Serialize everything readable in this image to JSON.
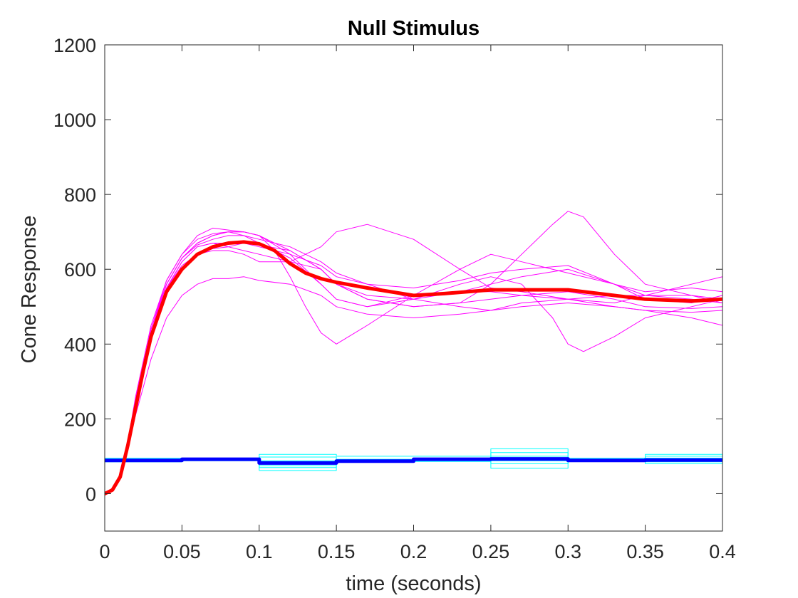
{
  "chart_data": {
    "type": "line",
    "title": "Null Stimulus",
    "xlabel": "time (seconds)",
    "ylabel": "Cone Response",
    "xlim": [
      0,
      0.4
    ],
    "ylim": [
      -100,
      1200
    ],
    "xticks": [
      0,
      0.05,
      0.1,
      0.15,
      0.2,
      0.25,
      0.3,
      0.35,
      0.4
    ],
    "xtick_labels": [
      "0",
      "0.05",
      "0.1",
      "0.15",
      "0.2",
      "0.25",
      "0.3",
      "0.35",
      "0.4"
    ],
    "yticks": [
      0,
      200,
      400,
      600,
      800,
      1000,
      1200
    ],
    "ytick_labels": [
      "0",
      "200",
      "400",
      "600",
      "800",
      "1000",
      "1200"
    ],
    "grid": false,
    "box": true,
    "colors": {
      "trial_response": "#ff00ff",
      "mean_response": "#ff0000",
      "trial_input": "#00ffff",
      "mean_input": "#0000ff"
    },
    "series": [
      {
        "role": "trial_response",
        "x": [
          0,
          0.005,
          0.01,
          0.015,
          0.02,
          0.03,
          0.04,
          0.05,
          0.06,
          0.07,
          0.08,
          0.09,
          0.1,
          0.12,
          0.14,
          0.15,
          0.17,
          0.2,
          0.23,
          0.25,
          0.27,
          0.3,
          0.33,
          0.35,
          0.38,
          0.4
        ],
        "y": [
          0,
          10,
          50,
          140,
          260,
          450,
          570,
          640,
          690,
          710,
          705,
          700,
          690,
          650,
          600,
          560,
          520,
          500,
          510,
          520,
          530,
          540,
          520,
          500,
          495,
          500
        ]
      },
      {
        "role": "trial_response",
        "x": [
          0,
          0.005,
          0.01,
          0.015,
          0.02,
          0.03,
          0.04,
          0.05,
          0.06,
          0.07,
          0.08,
          0.09,
          0.1,
          0.12,
          0.14,
          0.15,
          0.17,
          0.2,
          0.23,
          0.25,
          0.27,
          0.3,
          0.33,
          0.35,
          0.38,
          0.4
        ],
        "y": [
          0,
          10,
          50,
          140,
          250,
          430,
          550,
          620,
          660,
          670,
          660,
          650,
          640,
          620,
          600,
          560,
          530,
          520,
          540,
          560,
          580,
          600,
          560,
          530,
          520,
          510
        ]
      },
      {
        "role": "trial_response",
        "x": [
          0,
          0.005,
          0.01,
          0.015,
          0.02,
          0.03,
          0.04,
          0.05,
          0.06,
          0.07,
          0.08,
          0.09,
          0.1,
          0.12,
          0.14,
          0.15,
          0.17,
          0.2,
          0.23,
          0.25,
          0.27,
          0.3,
          0.33,
          0.35,
          0.38,
          0.4
        ],
        "y": [
          0,
          10,
          45,
          120,
          210,
          360,
          470,
          530,
          560,
          575,
          575,
          580,
          570,
          560,
          530,
          500,
          480,
          470,
          480,
          490,
          500,
          510,
          500,
          490,
          485,
          490
        ]
      },
      {
        "role": "trial_response",
        "x": [
          0,
          0.005,
          0.01,
          0.015,
          0.02,
          0.03,
          0.04,
          0.05,
          0.06,
          0.07,
          0.08,
          0.09,
          0.1,
          0.11,
          0.12,
          0.13,
          0.14,
          0.15,
          0.17,
          0.2,
          0.23,
          0.25,
          0.27,
          0.3,
          0.33,
          0.35,
          0.38,
          0.4
        ],
        "y": [
          0,
          10,
          50,
          140,
          250,
          440,
          560,
          630,
          670,
          690,
          700,
          700,
          690,
          650,
          580,
          500,
          430,
          400,
          450,
          530,
          540,
          540,
          530,
          520,
          500,
          490,
          470,
          450
        ]
      },
      {
        "role": "trial_response",
        "x": [
          0,
          0.005,
          0.01,
          0.015,
          0.02,
          0.03,
          0.04,
          0.05,
          0.06,
          0.07,
          0.08,
          0.09,
          0.1,
          0.12,
          0.14,
          0.15,
          0.17,
          0.2,
          0.23,
          0.25,
          0.27,
          0.29,
          0.3,
          0.31,
          0.33,
          0.35,
          0.38,
          0.4
        ],
        "y": [
          0,
          10,
          50,
          140,
          250,
          430,
          540,
          600,
          640,
          655,
          660,
          670,
          665,
          650,
          600,
          560,
          520,
          500,
          510,
          560,
          640,
          720,
          755,
          740,
          640,
          560,
          530,
          520
        ]
      },
      {
        "role": "trial_response",
        "x": [
          0,
          0.005,
          0.01,
          0.015,
          0.02,
          0.03,
          0.04,
          0.05,
          0.06,
          0.07,
          0.08,
          0.09,
          0.1,
          0.12,
          0.14,
          0.15,
          0.17,
          0.2,
          0.23,
          0.25,
          0.27,
          0.29,
          0.3,
          0.31,
          0.33,
          0.35,
          0.38,
          0.4
        ],
        "y": [
          0,
          10,
          50,
          140,
          250,
          440,
          560,
          630,
          670,
          690,
          700,
          700,
          690,
          640,
          560,
          520,
          500,
          520,
          560,
          580,
          560,
          470,
          400,
          380,
          420,
          470,
          500,
          520
        ]
      },
      {
        "role": "trial_response",
        "x": [
          0,
          0.005,
          0.01,
          0.015,
          0.02,
          0.03,
          0.04,
          0.05,
          0.06,
          0.07,
          0.08,
          0.09,
          0.1,
          0.12,
          0.14,
          0.15,
          0.17,
          0.2,
          0.23,
          0.25,
          0.27,
          0.3,
          0.33,
          0.35,
          0.38,
          0.4
        ],
        "y": [
          0,
          10,
          50,
          140,
          250,
          430,
          550,
          610,
          640,
          650,
          650,
          640,
          620,
          620,
          660,
          700,
          720,
          680,
          600,
          550,
          540,
          520,
          510,
          530,
          560,
          580
        ]
      },
      {
        "role": "trial_response",
        "x": [
          0,
          0.005,
          0.01,
          0.015,
          0.02,
          0.03,
          0.04,
          0.05,
          0.06,
          0.07,
          0.08,
          0.09,
          0.1,
          0.12,
          0.14,
          0.15,
          0.17,
          0.2,
          0.23,
          0.25,
          0.27,
          0.3,
          0.33,
          0.35,
          0.38,
          0.4
        ],
        "y": [
          0,
          10,
          50,
          140,
          250,
          440,
          570,
          640,
          680,
          695,
          700,
          690,
          670,
          630,
          560,
          520,
          500,
          530,
          600,
          640,
          620,
          590,
          560,
          540,
          550,
          540
        ]
      },
      {
        "role": "trial_response",
        "x": [
          0,
          0.005,
          0.01,
          0.015,
          0.02,
          0.03,
          0.04,
          0.05,
          0.06,
          0.07,
          0.08,
          0.09,
          0.1,
          0.12,
          0.14,
          0.15,
          0.17,
          0.2,
          0.23,
          0.25,
          0.27,
          0.3,
          0.33,
          0.35,
          0.38,
          0.4
        ],
        "y": [
          0,
          10,
          50,
          140,
          250,
          430,
          560,
          630,
          665,
          680,
          690,
          690,
          680,
          660,
          620,
          590,
          560,
          520,
          500,
          490,
          510,
          520,
          530,
          530,
          530,
          510
        ]
      },
      {
        "role": "trial_response",
        "x": [
          0,
          0.005,
          0.01,
          0.015,
          0.02,
          0.03,
          0.04,
          0.05,
          0.06,
          0.07,
          0.08,
          0.09,
          0.1,
          0.12,
          0.14,
          0.15,
          0.17,
          0.2,
          0.23,
          0.25,
          0.27,
          0.3,
          0.33,
          0.35,
          0.38,
          0.4
        ],
        "y": [
          0,
          10,
          50,
          140,
          250,
          430,
          550,
          620,
          660,
          670,
          670,
          670,
          660,
          640,
          610,
          580,
          560,
          550,
          570,
          590,
          600,
          610,
          560,
          520,
          510,
          530
        ]
      },
      {
        "role": "mean_response",
        "x": [
          0,
          0.005,
          0.01,
          0.015,
          0.02,
          0.025,
          0.03,
          0.04,
          0.05,
          0.06,
          0.07,
          0.08,
          0.09,
          0.1,
          0.11,
          0.12,
          0.13,
          0.14,
          0.15,
          0.17,
          0.2,
          0.22,
          0.25,
          0.27,
          0.3,
          0.32,
          0.35,
          0.38,
          0.4
        ],
        "y": [
          0,
          10,
          45,
          130,
          230,
          330,
          420,
          540,
          600,
          640,
          660,
          670,
          673,
          668,
          650,
          615,
          590,
          575,
          565,
          550,
          530,
          535,
          545,
          545,
          545,
          535,
          520,
          515,
          520
        ]
      },
      {
        "role": "trial_input",
        "x": [
          0,
          0.05,
          0.05,
          0.1,
          0.1,
          0.15,
          0.15,
          0.2,
          0.2,
          0.25,
          0.25,
          0.3,
          0.3,
          0.35,
          0.35,
          0.4
        ],
        "y": [
          95,
          95,
          95,
          95,
          105,
          105,
          100,
          100,
          100,
          100,
          120,
          120,
          95,
          95,
          105,
          105
        ]
      },
      {
        "role": "trial_input",
        "x": [
          0,
          0.05,
          0.05,
          0.1,
          0.1,
          0.15,
          0.15,
          0.2,
          0.2,
          0.25,
          0.25,
          0.3,
          0.3,
          0.35,
          0.35,
          0.4
        ],
        "y": [
          85,
          85,
          88,
          88,
          62,
          62,
          85,
          85,
          88,
          88,
          68,
          68,
          88,
          88,
          80,
          80
        ]
      },
      {
        "role": "trial_input",
        "x": [
          0,
          0.05,
          0.05,
          0.1,
          0.1,
          0.15,
          0.15,
          0.2,
          0.2,
          0.25,
          0.25,
          0.3,
          0.3,
          0.35,
          0.35,
          0.4
        ],
        "y": [
          90,
          90,
          92,
          92,
          98,
          98,
          92,
          92,
          95,
          95,
          110,
          110,
          90,
          90,
          95,
          95
        ]
      },
      {
        "role": "trial_input",
        "x": [
          0,
          0.05,
          0.05,
          0.1,
          0.1,
          0.15,
          0.15,
          0.2,
          0.2,
          0.25,
          0.25,
          0.3,
          0.3,
          0.35,
          0.35,
          0.4
        ],
        "y": [
          88,
          88,
          90,
          90,
          75,
          75,
          88,
          88,
          90,
          90,
          80,
          80,
          90,
          90,
          90,
          90
        ]
      },
      {
        "role": "trial_input",
        "x": [
          0,
          0.05,
          0.05,
          0.1,
          0.1,
          0.15,
          0.15,
          0.2,
          0.2,
          0.25,
          0.25,
          0.3,
          0.3,
          0.35,
          0.35,
          0.4
        ],
        "y": [
          92,
          92,
          94,
          94,
          88,
          88,
          90,
          90,
          92,
          92,
          100,
          100,
          92,
          92,
          100,
          100
        ]
      },
      {
        "role": "trial_input",
        "x": [
          0,
          0.05,
          0.05,
          0.1,
          0.1,
          0.15,
          0.15,
          0.2,
          0.2,
          0.25,
          0.25,
          0.3,
          0.3,
          0.35,
          0.35,
          0.4
        ],
        "y": [
          86,
          86,
          89,
          89,
          70,
          70,
          88,
          88,
          86,
          86,
          88,
          88,
          86,
          86,
          85,
          85
        ]
      },
      {
        "role": "mean_input",
        "x": [
          0,
          0.05,
          0.05,
          0.1,
          0.1,
          0.15,
          0.15,
          0.2,
          0.2,
          0.25,
          0.25,
          0.3,
          0.3,
          0.35,
          0.35,
          0.4
        ],
        "y": [
          89,
          89,
          92,
          92,
          82,
          82,
          87,
          87,
          92,
          92,
          93,
          93,
          89,
          89,
          90,
          90
        ]
      }
    ]
  }
}
